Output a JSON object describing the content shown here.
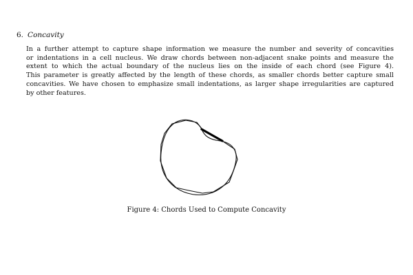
{
  "section": {
    "number": "6.",
    "title": "Concavity"
  },
  "paragraph": {
    "lines": [
      "In a further attempt to capture shape information we measure the number and severity of concavities",
      "or indentations in a cell nucleus. We draw chords between non-adjacent snake points and measure the",
      "extent to which the actual boundary of the nucleus lies on the inside of each chord (see Figure 4).",
      "This parameter is greatly affected by the length of these chords, as smaller chords better capture small",
      "concavities. We have chosen to emphasize small indentations, as larger shape irregularities are captured",
      "by other features."
    ]
  },
  "figure": {
    "caption": "Figure 4: Chords Used to Compute Concavity"
  }
}
